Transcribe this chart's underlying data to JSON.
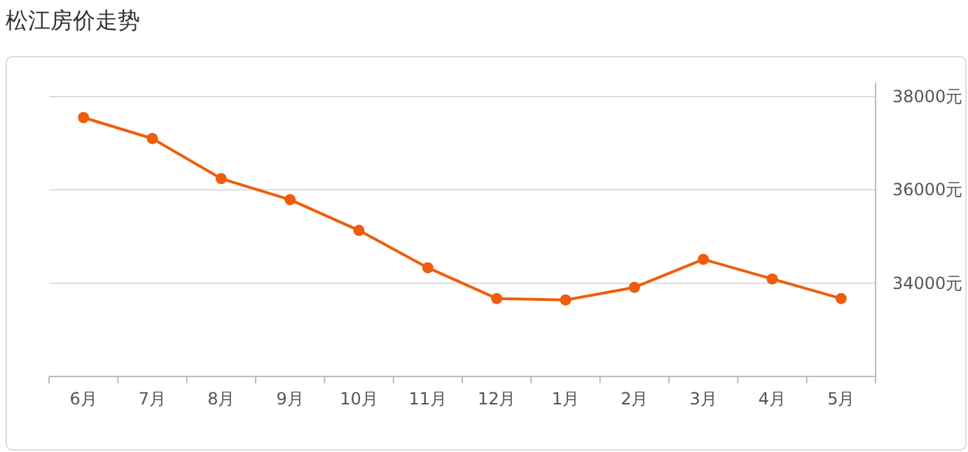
{
  "chart_data": {
    "type": "line",
    "title": "松江房价走势",
    "categories": [
      "6月",
      "7月",
      "8月",
      "9月",
      "10月",
      "11月",
      "12月",
      "1月",
      "2月",
      "3月",
      "4月",
      "5月"
    ],
    "series": [
      {
        "color": "#ef5d0c",
        "values": [
          37550,
          37100,
          36240,
          35790,
          35130,
          34330,
          33670,
          33640,
          33910,
          34510,
          34090,
          33670
        ]
      }
    ],
    "ylim": [
      32000,
      38000
    ],
    "yticks": [
      {
        "value": 34000,
        "label": "34000元"
      },
      {
        "value": 36000,
        "label": "36000元"
      },
      {
        "value": 38000,
        "label": "38000元"
      }
    ],
    "grid": "y",
    "marker": "circle",
    "line_style": "solid"
  }
}
